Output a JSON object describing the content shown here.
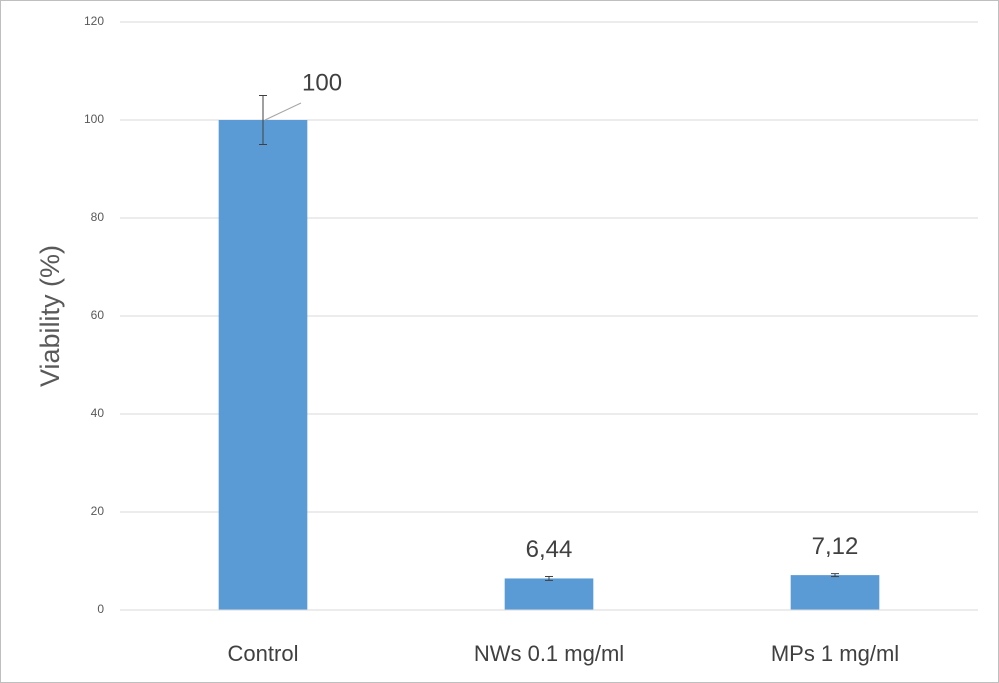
{
  "chart_data": {
    "type": "bar",
    "y_label": "Viability (%)",
    "categories": [
      "Control",
      "NWs 0.1 mg/ml",
      "MPs 1 mg/ml"
    ],
    "values": [
      100,
      6.44,
      7.12
    ],
    "value_labels": [
      "100",
      "6,44",
      "7,12"
    ],
    "errors": [
      5,
      0.4,
      0.3
    ],
    "color": "#5b9bd5",
    "ylim": [
      0,
      120
    ],
    "yticks": [
      0,
      20,
      40,
      60,
      80,
      100,
      120
    ],
    "grid": true
  }
}
